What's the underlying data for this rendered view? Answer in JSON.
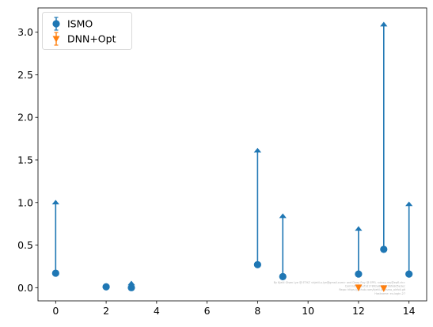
{
  "chart_data": {
    "type": "scatter",
    "title": "",
    "xlabel": "",
    "ylabel": "",
    "xlim": [
      -0.7,
      14.7
    ],
    "ylim": [
      -0.155,
      3.285
    ],
    "x_ticks": [
      0,
      2,
      4,
      6,
      8,
      10,
      12,
      14
    ],
    "y_ticks": [
      0.0,
      0.5,
      1.0,
      1.5,
      2.0,
      2.5,
      3.0
    ],
    "x_tick_labels": [
      "0",
      "2",
      "4",
      "6",
      "8",
      "10",
      "12",
      "14"
    ],
    "y_tick_labels": [
      "0.0",
      "0.5",
      "1.0",
      "1.5",
      "2.0",
      "2.5",
      "3.0"
    ],
    "grid": false,
    "legend_position": "top-left",
    "series": [
      {
        "name": "ISMO",
        "color": "#1f77b4",
        "marker": "circle",
        "error_style": "upper-limit arrows",
        "points": [
          {
            "x": 0,
            "y": 0.17,
            "upper": 1.02
          },
          {
            "x": 2,
            "y": 0.01,
            "upper": 0.04
          },
          {
            "x": 3,
            "y": 0.0,
            "upper": 0.07
          },
          {
            "x": 8,
            "y": 0.27,
            "upper": 1.63
          },
          {
            "x": 9,
            "y": 0.13,
            "upper": 0.86
          },
          {
            "x": 12,
            "y": 0.16,
            "upper": 0.71
          },
          {
            "x": 13,
            "y": 0.45,
            "upper": 3.11
          },
          {
            "x": 14,
            "y": 0.16,
            "upper": 1.0
          }
        ]
      },
      {
        "name": "DNN+Opt",
        "color": "#ff7f0e",
        "marker": "triangle-down",
        "error_style": "upper-limit arrows",
        "points": [
          {
            "x": 12,
            "y": 0.0
          },
          {
            "x": 13,
            "y": -0.01
          }
        ]
      }
    ],
    "watermark_lines": [
      "By Kjetil Olsen Lye @ ETHZ <kjetil.o.lye@gmail.com> and Deep Ray @ EPFL <deep.ray@epfl.ch>",
      "Commit: 3e1ef1d17862a8ef38c9bfe8d5e3ec",
      "Repo: https://github.com/kjetil-lye/ismo_airfoil.git",
      "Hostname: eu-login-27"
    ]
  }
}
